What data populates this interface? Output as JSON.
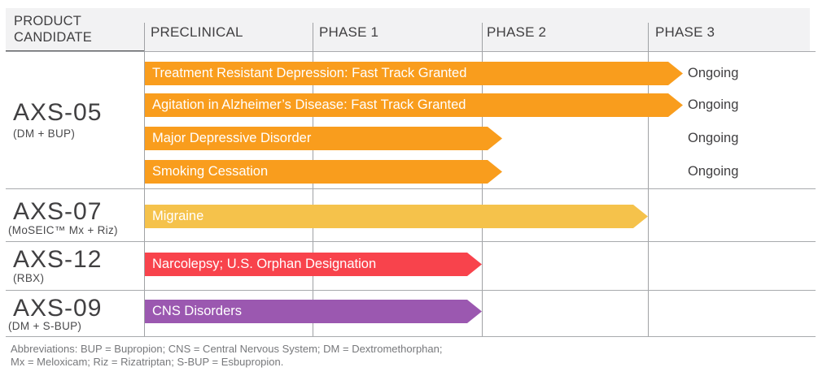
{
  "header": {
    "product_column_label": "PRODUCT CANDIDATE",
    "phases": [
      "PRECLINICAL",
      "PHASE 1",
      "PHASE 2",
      "PHASE 3"
    ]
  },
  "colors": {
    "orange": "#F99D1D",
    "gold": "#F5C24B",
    "red": "#F8434C",
    "purple": "#9B58B0",
    "header_background": "#F2F2F3",
    "grid_line": "#A0A2A5",
    "text_dark": "#414042",
    "footnote_gray": "#77787B"
  },
  "products": [
    {
      "name": "AXS-05",
      "subtitle": "(DM + BUP)",
      "programs": [
        {
          "label": "Treatment Resistant Depression: Fast Track Granted",
          "status": "Ongoing",
          "color": "#F99D1D"
        },
        {
          "label": "Agitation in Alzheimer’s Disease: Fast Track Granted",
          "status": "Ongoing",
          "color": "#F99D1D"
        },
        {
          "label": "Major Depressive Disorder",
          "status": "Ongoing",
          "color": "#F99D1D"
        },
        {
          "label": "Smoking Cessation",
          "status": "Ongoing",
          "color": "#F99D1D"
        }
      ]
    },
    {
      "name": "AXS-07",
      "subtitle": "(MoSEIC™ Mx + Riz)",
      "programs": [
        {
          "label": "Migraine",
          "status": "",
          "color": "#F5C24B"
        }
      ]
    },
    {
      "name": "AXS-12",
      "subtitle": "(RBX)",
      "programs": [
        {
          "label": "Narcolepsy; U.S. Orphan Designation",
          "status": "",
          "color": "#F8434C"
        }
      ]
    },
    {
      "name": "AXS-09",
      "subtitle": "(DM + S-BUP)",
      "programs": [
        {
          "label": "CNS Disorders",
          "status": "",
          "color": "#9B58B0"
        }
      ]
    }
  ],
  "footnote": {
    "line1": "Abbreviations: BUP = Bupropion; CNS = Central Nervous System; DM = Dextromethorphan;",
    "line2": "Mx = Meloxicam; Riz = Rizatriptan; S-BUP = Esbupropion."
  },
  "chart_data": {
    "type": "bar",
    "subtype": "horizontal-pipeline-gantt",
    "title": "",
    "x_phases": [
      "PRECLINICAL",
      "PHASE 1",
      "PHASE 2",
      "PHASE 3"
    ],
    "grid": true,
    "rows": [
      {
        "product": "AXS-05 (DM + BUP)",
        "program": "Treatment Resistant Depression: Fast Track Granted",
        "extent": "extends into Phase 3",
        "status": "Ongoing",
        "color": "#F99D1D"
      },
      {
        "product": "AXS-05 (DM + BUP)",
        "program": "Agitation in Alzheimer’s Disease: Fast Track Granted",
        "extent": "extends into Phase 3",
        "status": "Ongoing",
        "color": "#F99D1D"
      },
      {
        "product": "AXS-05 (DM + BUP)",
        "program": "Major Depressive Disorder",
        "extent": "extends just into Phase 2",
        "status": "Ongoing",
        "color": "#F99D1D"
      },
      {
        "product": "AXS-05 (DM + BUP)",
        "program": "Smoking Cessation",
        "extent": "extends just into Phase 2",
        "status": "Ongoing",
        "color": "#F99D1D"
      },
      {
        "product": "AXS-07 (MoSEIC™ Mx + Riz)",
        "program": "Migraine",
        "extent": "through Phase 2 (tip at Phase 3 boundary)",
        "status": "",
        "color": "#F5C24B"
      },
      {
        "product": "AXS-12 (RBX)",
        "program": "Narcolepsy; U.S. Orphan Designation",
        "extent": "through Phase 1 (tip at Phase 2 boundary)",
        "status": "",
        "color": "#F8434C"
      },
      {
        "product": "AXS-09 (DM + S-BUP)",
        "program": "CNS Disorders",
        "extent": "through Phase 1 (tip at Phase 2 boundary)",
        "status": "",
        "color": "#9B58B0"
      }
    ]
  }
}
